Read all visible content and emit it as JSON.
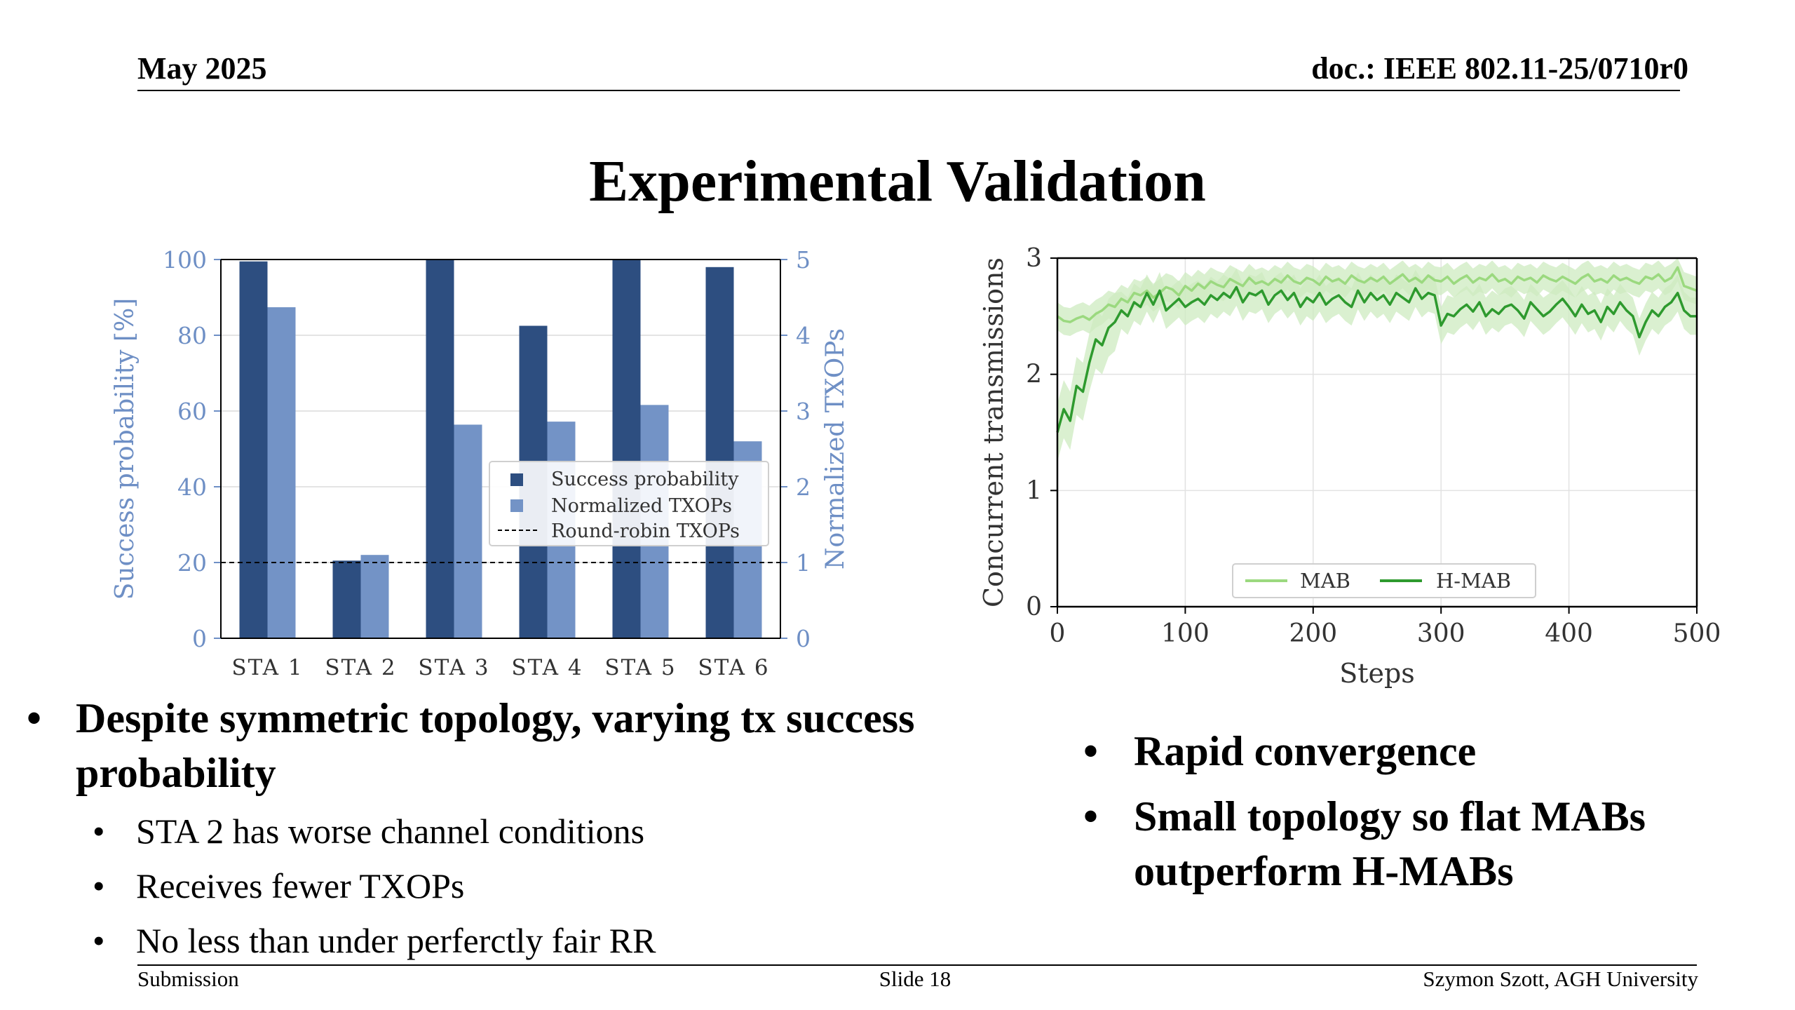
{
  "header": {
    "date": "May 2025",
    "doc": "doc.: IEEE 802.11-25/0710r0"
  },
  "title": "Experimental Validation",
  "colors": {
    "dark_blue": "#2d4e80",
    "light_blue": "#7393c6",
    "axis_blue": "#6e8fc5",
    "light_green": "#9bd97f",
    "dark_green": "#2e9a2e",
    "band_green": "#cdebc0"
  },
  "chart_data": [
    {
      "type": "bar",
      "categories": [
        "STA 1",
        "STA 2",
        "STA 3",
        "STA 4",
        "STA 5",
        "STA 6"
      ],
      "series": [
        {
          "name": "Success probability",
          "axis": "left",
          "values": [
            99.5,
            20.5,
            100,
            82.5,
            100,
            98
          ]
        },
        {
          "name": "Normalized TXOPs",
          "axis": "right",
          "values": [
            4.37,
            1.1,
            2.82,
            2.86,
            3.08,
            2.6
          ]
        }
      ],
      "reference_line": {
        "name": "Round-robin TXOPs",
        "axis": "right",
        "value": 1
      },
      "ylabel": "Success probability [%]",
      "ylabel_right": "Normalized TXOPs",
      "ylim": [
        0,
        100
      ],
      "ylim_right": [
        0,
        5
      ],
      "yticks": [
        "0",
        "20",
        "40",
        "60",
        "80",
        "100"
      ],
      "yticks_right": [
        "0",
        "1",
        "2",
        "3",
        "4",
        "5"
      ],
      "grid": true,
      "legend": "center-right"
    },
    {
      "type": "line",
      "x": [
        0,
        5,
        10,
        15,
        20,
        25,
        30,
        35,
        40,
        45,
        50,
        55,
        60,
        65,
        70,
        75,
        80,
        85,
        90,
        95,
        100,
        105,
        110,
        115,
        120,
        125,
        130,
        135,
        140,
        145,
        150,
        155,
        160,
        165,
        170,
        175,
        180,
        185,
        190,
        195,
        200,
        205,
        210,
        215,
        220,
        225,
        230,
        235,
        240,
        245,
        250,
        255,
        260,
        265,
        270,
        275,
        280,
        285,
        290,
        295,
        300,
        305,
        310,
        315,
        320,
        325,
        330,
        335,
        340,
        345,
        350,
        355,
        360,
        365,
        370,
        375,
        380,
        385,
        390,
        395,
        400,
        405,
        410,
        415,
        420,
        425,
        430,
        435,
        440,
        445,
        450,
        455,
        460,
        465,
        470,
        475,
        480,
        485,
        490,
        495,
        500
      ],
      "series": [
        {
          "name": "MAB",
          "values": [
            2.5,
            2.46,
            2.45,
            2.48,
            2.5,
            2.47,
            2.52,
            2.55,
            2.6,
            2.58,
            2.65,
            2.62,
            2.7,
            2.68,
            2.72,
            2.66,
            2.7,
            2.75,
            2.73,
            2.68,
            2.76,
            2.72,
            2.78,
            2.74,
            2.8,
            2.77,
            2.75,
            2.82,
            2.79,
            2.76,
            2.83,
            2.78,
            2.8,
            2.77,
            2.82,
            2.79,
            2.85,
            2.8,
            2.78,
            2.83,
            2.81,
            2.77,
            2.84,
            2.8,
            2.82,
            2.78,
            2.85,
            2.81,
            2.79,
            2.83,
            2.8,
            2.84,
            2.78,
            2.82,
            2.86,
            2.8,
            2.83,
            2.79,
            2.85,
            2.81,
            2.8,
            2.84,
            2.78,
            2.82,
            2.85,
            2.79,
            2.83,
            2.81,
            2.86,
            2.8,
            2.82,
            2.78,
            2.84,
            2.81,
            2.83,
            2.79,
            2.85,
            2.82,
            2.8,
            2.84,
            2.81,
            2.78,
            2.83,
            2.86,
            2.8,
            2.82,
            2.79,
            2.85,
            2.81,
            2.83,
            2.8,
            2.78,
            2.84,
            2.82,
            2.86,
            2.8,
            2.83,
            2.92,
            2.76,
            2.74,
            2.72
          ]
        },
        {
          "name": "H-MAB",
          "values": [
            1.5,
            1.7,
            1.6,
            1.9,
            1.85,
            2.1,
            2.3,
            2.25,
            2.4,
            2.45,
            2.55,
            2.5,
            2.62,
            2.58,
            2.7,
            2.6,
            2.72,
            2.55,
            2.6,
            2.65,
            2.58,
            2.62,
            2.65,
            2.6,
            2.68,
            2.64,
            2.7,
            2.66,
            2.75,
            2.62,
            2.7,
            2.68,
            2.72,
            2.6,
            2.68,
            2.72,
            2.64,
            2.7,
            2.58,
            2.66,
            2.62,
            2.7,
            2.6,
            2.65,
            2.68,
            2.62,
            2.58,
            2.72,
            2.62,
            2.7,
            2.64,
            2.68,
            2.6,
            2.7,
            2.66,
            2.62,
            2.74,
            2.65,
            2.7,
            2.68,
            2.42,
            2.52,
            2.5,
            2.56,
            2.6,
            2.54,
            2.62,
            2.5,
            2.56,
            2.52,
            2.58,
            2.6,
            2.55,
            2.48,
            2.62,
            2.56,
            2.5,
            2.54,
            2.6,
            2.65,
            2.58,
            2.5,
            2.6,
            2.52,
            2.55,
            2.45,
            2.58,
            2.52,
            2.62,
            2.55,
            2.5,
            2.32,
            2.45,
            2.55,
            2.5,
            2.58,
            2.62,
            2.7,
            2.55,
            2.5,
            2.5
          ]
        }
      ],
      "xlabel": "Steps",
      "ylabel": "Concurrent transmissions",
      "xlim": [
        0,
        500
      ],
      "ylim": [
        0,
        3
      ],
      "xticks": [
        "0",
        "100",
        "200",
        "300",
        "400",
        "500"
      ],
      "yticks": [
        "0",
        "1",
        "2",
        "3"
      ],
      "grid": true,
      "legend": "bottom-center"
    }
  ],
  "left_bullets": {
    "main": "Despite symmetric topology, varying tx success probability",
    "subs": [
      "STA 2 has worse channel conditions",
      "Receives fewer TXOPs",
      "No less than under perferctly fair RR"
    ]
  },
  "right_bullets": [
    "Rapid convergence",
    "Small topology so flat MABs outperform H-MABs"
  ],
  "footer": {
    "left": "Submission",
    "center": "Slide 18",
    "right": "Szymon Szott, AGH University"
  }
}
